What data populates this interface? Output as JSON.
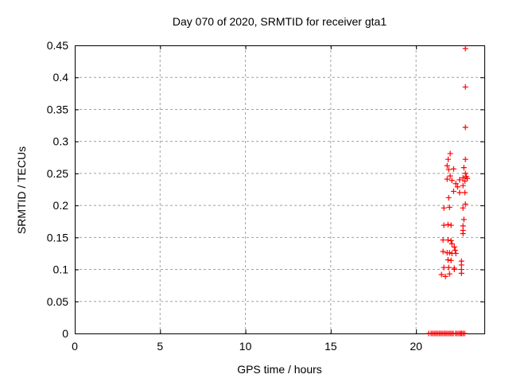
{
  "title": "Day 070 of 2020, SRMTID for receiver gta1",
  "colors": {
    "background": "#ffffff",
    "axis": "#000000",
    "grid": "#a0a0a0",
    "marker": "#ff0000",
    "text": "#000000"
  },
  "chart_data": {
    "type": "scatter",
    "title": "Day 070 of 2020, SRMTID for receiver gta1",
    "xlabel": "GPS time / hours",
    "ylabel": "SRMTID / TECUs",
    "xlim": [
      0,
      24
    ],
    "ylim": [
      0,
      0.45
    ],
    "xticks": [
      0,
      5,
      10,
      15,
      20
    ],
    "xtick_labels": [
      "0",
      "5",
      "10",
      "15",
      "20"
    ],
    "yticks": [
      0,
      0.05,
      0.1,
      0.15,
      0.2,
      0.25,
      0.3,
      0.35,
      0.4,
      0.45
    ],
    "ytick_labels": [
      "0",
      "0.05",
      "0.1",
      "0.15",
      "0.2",
      "0.25",
      "0.3",
      "0.35",
      "0.4",
      "0.45"
    ],
    "grid": true,
    "grid_style": "dashed",
    "legend": "none",
    "marker": {
      "shape": "plus",
      "size": 7,
      "color": "#ff0000",
      "name": "plus-marker"
    },
    "series": [
      {
        "name": "SRMTID",
        "points": [
          [
            22.89,
            0.445
          ],
          [
            22.89,
            0.385
          ],
          [
            22.89,
            0.322
          ],
          [
            22.0,
            0.281
          ],
          [
            22.89,
            0.272
          ],
          [
            21.88,
            0.272
          ],
          [
            21.82,
            0.262
          ],
          [
            21.91,
            0.256
          ],
          [
            22.2,
            0.257
          ],
          [
            22.8,
            0.259
          ],
          [
            22.89,
            0.25
          ],
          [
            22.94,
            0.245
          ],
          [
            22.75,
            0.243
          ],
          [
            23.0,
            0.242
          ],
          [
            22.0,
            0.246
          ],
          [
            21.82,
            0.241
          ],
          [
            22.1,
            0.239
          ],
          [
            22.33,
            0.234
          ],
          [
            22.55,
            0.24
          ],
          [
            22.86,
            0.238
          ],
          [
            22.43,
            0.229
          ],
          [
            22.75,
            0.231
          ],
          [
            22.2,
            0.222
          ],
          [
            22.55,
            0.22
          ],
          [
            22.86,
            0.22
          ],
          [
            21.91,
            0.212
          ],
          [
            22.89,
            0.202
          ],
          [
            21.63,
            0.196
          ],
          [
            21.96,
            0.197
          ],
          [
            22.75,
            0.196
          ],
          [
            22.8,
            0.178
          ],
          [
            21.63,
            0.169
          ],
          [
            21.87,
            0.17
          ],
          [
            22.05,
            0.169
          ],
          [
            22.75,
            0.168
          ],
          [
            22.75,
            0.161
          ],
          [
            22.75,
            0.156
          ],
          [
            21.58,
            0.146
          ],
          [
            21.87,
            0.146
          ],
          [
            22.05,
            0.145
          ],
          [
            22.1,
            0.14
          ],
          [
            22.24,
            0.135
          ],
          [
            22.29,
            0.13
          ],
          [
            21.58,
            0.128
          ],
          [
            21.82,
            0.126
          ],
          [
            21.96,
            0.126
          ],
          [
            22.1,
            0.125
          ],
          [
            22.33,
            0.125
          ],
          [
            21.87,
            0.115
          ],
          [
            22.05,
            0.114
          ],
          [
            22.66,
            0.113
          ],
          [
            22.66,
            0.107
          ],
          [
            21.63,
            0.103
          ],
          [
            21.91,
            0.103
          ],
          [
            22.24,
            0.102
          ],
          [
            22.24,
            0.1
          ],
          [
            22.66,
            0.1
          ],
          [
            21.49,
            0.092
          ],
          [
            21.72,
            0.089
          ],
          [
            21.96,
            0.093
          ],
          [
            22.66,
            0.094
          ],
          [
            20.74,
            0
          ],
          [
            20.88,
            0
          ],
          [
            20.97,
            0
          ],
          [
            21.07,
            0
          ],
          [
            21.16,
            0
          ],
          [
            21.25,
            0
          ],
          [
            21.35,
            0
          ],
          [
            21.44,
            0
          ],
          [
            21.53,
            0
          ],
          [
            21.63,
            0
          ],
          [
            21.72,
            0
          ],
          [
            21.81,
            0
          ],
          [
            21.91,
            0
          ],
          [
            22.0,
            0
          ],
          [
            22.09,
            0
          ],
          [
            22.18,
            0
          ],
          [
            22.32,
            0
          ],
          [
            22.41,
            0
          ],
          [
            22.51,
            0
          ],
          [
            22.6,
            0
          ],
          [
            22.66,
            0
          ],
          [
            22.75,
            0
          ],
          [
            22.84,
            0
          ]
        ]
      }
    ]
  }
}
